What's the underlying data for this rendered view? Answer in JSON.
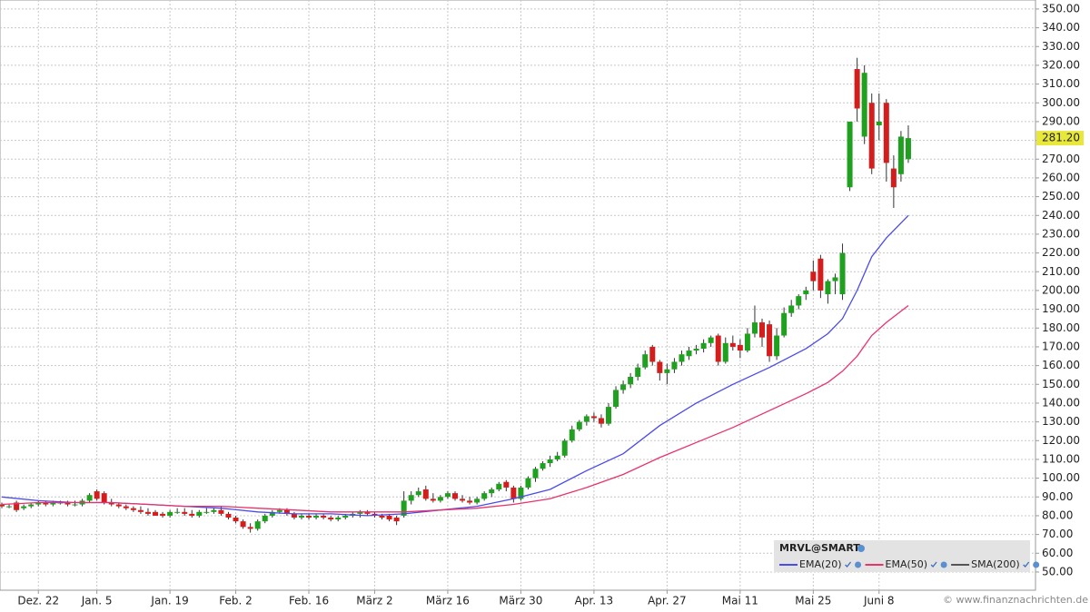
{
  "chart_data": {
    "type": "candlestick",
    "title": "MRVL@SMART",
    "watermark": "© www.finanznachrichten.de",
    "grid": true,
    "ylim": [
      40.3,
      354.8
    ],
    "yticks": [
      {
        "value": 50,
        "label": "50.00"
      },
      {
        "value": 60,
        "label": "60.00"
      },
      {
        "value": 70,
        "label": "70.00"
      },
      {
        "value": 80,
        "label": "80.00"
      },
      {
        "value": 90,
        "label": "90.00"
      },
      {
        "value": 100,
        "label": "100.00"
      },
      {
        "value": 110,
        "label": "110.00"
      },
      {
        "value": 120,
        "label": "120.00"
      },
      {
        "value": 130,
        "label": "130.00"
      },
      {
        "value": 140,
        "label": "140.00"
      },
      {
        "value": 150,
        "label": "150.00"
      },
      {
        "value": 160,
        "label": "160.00"
      },
      {
        "value": 170,
        "label": "170.00"
      },
      {
        "value": 180,
        "label": "180.00"
      },
      {
        "value": 190,
        "label": "190.00"
      },
      {
        "value": 200,
        "label": "200.00"
      },
      {
        "value": 210,
        "label": "210.00"
      },
      {
        "value": 220,
        "label": "220.00"
      },
      {
        "value": 230,
        "label": "230.00"
      },
      {
        "value": 240,
        "label": "240.00"
      },
      {
        "value": 250,
        "label": "250.00"
      },
      {
        "value": 260,
        "label": "260.00"
      },
      {
        "value": 270,
        "label": "270.00"
      },
      {
        "value": 280,
        "label": "280.00"
      },
      {
        "value": 290,
        "label": "290.00"
      },
      {
        "value": 300,
        "label": "300.00"
      },
      {
        "value": 310,
        "label": "310.00"
      },
      {
        "value": 320,
        "label": "320.00"
      },
      {
        "value": 330,
        "label": "330.00"
      },
      {
        "value": 340,
        "label": "340.00"
      },
      {
        "value": 350,
        "label": "350.00"
      }
    ],
    "xlim": [
      -0.25,
      141.4
    ],
    "xticks": [
      {
        "value": 5,
        "label": "Dez. 22"
      },
      {
        "value": 13,
        "label": "Jan. 5"
      },
      {
        "value": 23,
        "label": "Jan. 19"
      },
      {
        "value": 32,
        "label": "Feb. 2"
      },
      {
        "value": 42,
        "label": "Feb. 16"
      },
      {
        "value": 51,
        "label": "März 2"
      },
      {
        "value": 61,
        "label": "März 16"
      },
      {
        "value": 71,
        "label": "März 30"
      },
      {
        "value": 81,
        "label": "Apr. 13"
      },
      {
        "value": 91,
        "label": "Apr. 27"
      },
      {
        "value": 101,
        "label": "Mai 11"
      },
      {
        "value": 111,
        "label": "Mai 25"
      },
      {
        "value": 120,
        "label": "Juni 8"
      }
    ],
    "candles": {
      "up_color": "#1fa01f",
      "down_color": "#d41e1e",
      "last_close_label": "281.20",
      "open": [
        86,
        85,
        87,
        84,
        85,
        86,
        87,
        86,
        87,
        87,
        86,
        86,
        88,
        93,
        92,
        87,
        86,
        85,
        84,
        83,
        82,
        82,
        81,
        80,
        82,
        82,
        81,
        80,
        82,
        82,
        83,
        81,
        79,
        77,
        74,
        73,
        77,
        80,
        82,
        83,
        81,
        79,
        80,
        79,
        80,
        79,
        78,
        79,
        80,
        81,
        82,
        81,
        80,
        80,
        79,
        80,
        88,
        91,
        94,
        89,
        88,
        90,
        92,
        89,
        88,
        87,
        89,
        92,
        94,
        98,
        95,
        89,
        95,
        100,
        105,
        108,
        110,
        112,
        120,
        126,
        130,
        133,
        132,
        129,
        138,
        147,
        150,
        154,
        159,
        170,
        162,
        156,
        158,
        162,
        165,
        168,
        169,
        172,
        176,
        162,
        172,
        171,
        168,
        177,
        183,
        182,
        165,
        176,
        188,
        192,
        198,
        210,
        217,
        198,
        205,
        198,
        255,
        318,
        282,
        300,
        288,
        300,
        265,
        262,
        270
      ],
      "high": [
        87,
        86,
        88,
        86,
        87,
        88,
        88,
        88,
        88,
        88,
        88,
        89,
        92,
        94,
        93,
        89,
        87,
        86,
        85,
        85,
        84,
        83,
        82,
        83,
        84,
        84,
        83,
        83,
        84,
        84,
        85,
        82,
        80,
        78,
        76,
        78,
        81,
        83,
        84,
        84,
        82,
        81,
        81,
        81,
        81,
        80,
        80,
        81,
        82,
        83,
        83,
        82,
        81,
        81,
        80,
        93,
        93,
        95,
        96,
        92,
        91,
        93,
        93,
        91,
        90,
        90,
        93,
        95,
        98,
        99,
        96,
        96,
        101,
        106,
        109,
        112,
        114,
        121,
        128,
        131,
        134,
        135,
        134,
        140,
        149,
        152,
        156,
        161,
        168,
        171,
        163,
        161,
        164,
        168,
        170,
        171,
        174,
        176,
        177,
        175,
        176,
        174,
        180,
        192,
        185,
        184,
        180,
        191,
        195,
        198,
        202,
        216,
        219,
        206,
        209,
        225,
        290,
        324,
        320,
        305,
        305,
        302,
        272,
        285,
        288
      ],
      "low": [
        84,
        84,
        82,
        83,
        84,
        85,
        85,
        85,
        86,
        85,
        85,
        85,
        87,
        88,
        86,
        85,
        84,
        83,
        82,
        81,
        80,
        80,
        79,
        79,
        81,
        80,
        79,
        79,
        81,
        81,
        80,
        78,
        76,
        73,
        71,
        72,
        76,
        79,
        81,
        80,
        78,
        78,
        78,
        78,
        78,
        77,
        77,
        78,
        79,
        79,
        80,
        79,
        78,
        77,
        75,
        79,
        86,
        90,
        88,
        87,
        87,
        89,
        88,
        87,
        86,
        86,
        88,
        90,
        93,
        93,
        87,
        88,
        94,
        98,
        104,
        106,
        109,
        111,
        119,
        125,
        128,
        130,
        127,
        128,
        137,
        145,
        148,
        152,
        158,
        160,
        152,
        150,
        156,
        160,
        163,
        166,
        167,
        170,
        160,
        161,
        168,
        164,
        167,
        175,
        170,
        162,
        163,
        175,
        186,
        190,
        195,
        200,
        196,
        193,
        198,
        195,
        253,
        290,
        278,
        262,
        280,
        258,
        244,
        258,
        268
      ],
      "close": [
        85,
        85,
        83,
        85,
        86,
        87,
        86,
        87,
        87,
        86,
        86,
        88,
        91,
        89,
        87,
        86,
        85,
        84,
        83,
        82,
        81,
        80,
        80,
        82,
        82,
        81,
        80,
        82,
        82,
        83,
        81,
        79,
        77,
        74,
        73,
        77,
        80,
        82,
        83,
        81,
        79,
        80,
        79,
        80,
        79,
        78,
        79,
        80,
        81,
        82,
        81,
        80,
        79,
        78,
        77,
        88,
        91,
        93,
        89,
        88,
        90,
        92,
        89,
        88,
        87,
        89,
        92,
        94,
        97,
        95,
        89,
        95,
        100,
        105,
        108,
        110,
        112,
        120,
        126,
        130,
        133,
        132,
        129,
        138,
        147,
        150,
        154,
        159,
        166,
        162,
        156,
        158,
        162,
        166,
        168,
        169,
        172,
        175,
        162,
        172,
        170,
        168,
        177,
        183,
        175,
        165,
        176,
        188,
        192,
        197,
        200,
        205,
        200,
        205,
        207,
        220,
        290,
        297,
        316,
        265,
        290,
        268,
        255,
        282,
        281.2
      ]
    },
    "series": [
      {
        "name": "EMA(20)",
        "color": "#4b4bea",
        "x": [
          0,
          5,
          10,
          15,
          20,
          25,
          30,
          35,
          40,
          45,
          50,
          55,
          60,
          65,
          70,
          75,
          80,
          85,
          90,
          95,
          100,
          105,
          110,
          113,
          115,
          117,
          119,
          121,
          124
        ],
        "values": [
          90,
          88,
          87,
          87,
          86,
          85,
          84,
          82,
          81,
          81,
          80,
          81,
          83,
          85,
          89,
          94,
          104,
          113,
          128,
          140,
          150,
          159,
          169,
          177,
          185,
          200,
          218,
          228,
          240
        ]
      },
      {
        "name": "EMA(50)",
        "color": "#e8336b",
        "x": [
          0,
          5,
          10,
          15,
          20,
          25,
          30,
          35,
          40,
          45,
          50,
          55,
          60,
          65,
          70,
          75,
          80,
          85,
          90,
          95,
          100,
          105,
          110,
          113,
          115,
          117,
          119,
          121,
          124
        ],
        "values": [
          86,
          87,
          87,
          87,
          86,
          85,
          85,
          84,
          83,
          82,
          82,
          82,
          83,
          84,
          86,
          89,
          95,
          102,
          111,
          119,
          127,
          136,
          145,
          151,
          157,
          165,
          176,
          183,
          192
        ]
      },
      {
        "name": "SMA(200)",
        "color": "#555555",
        "x": [],
        "values": []
      }
    ]
  }
}
